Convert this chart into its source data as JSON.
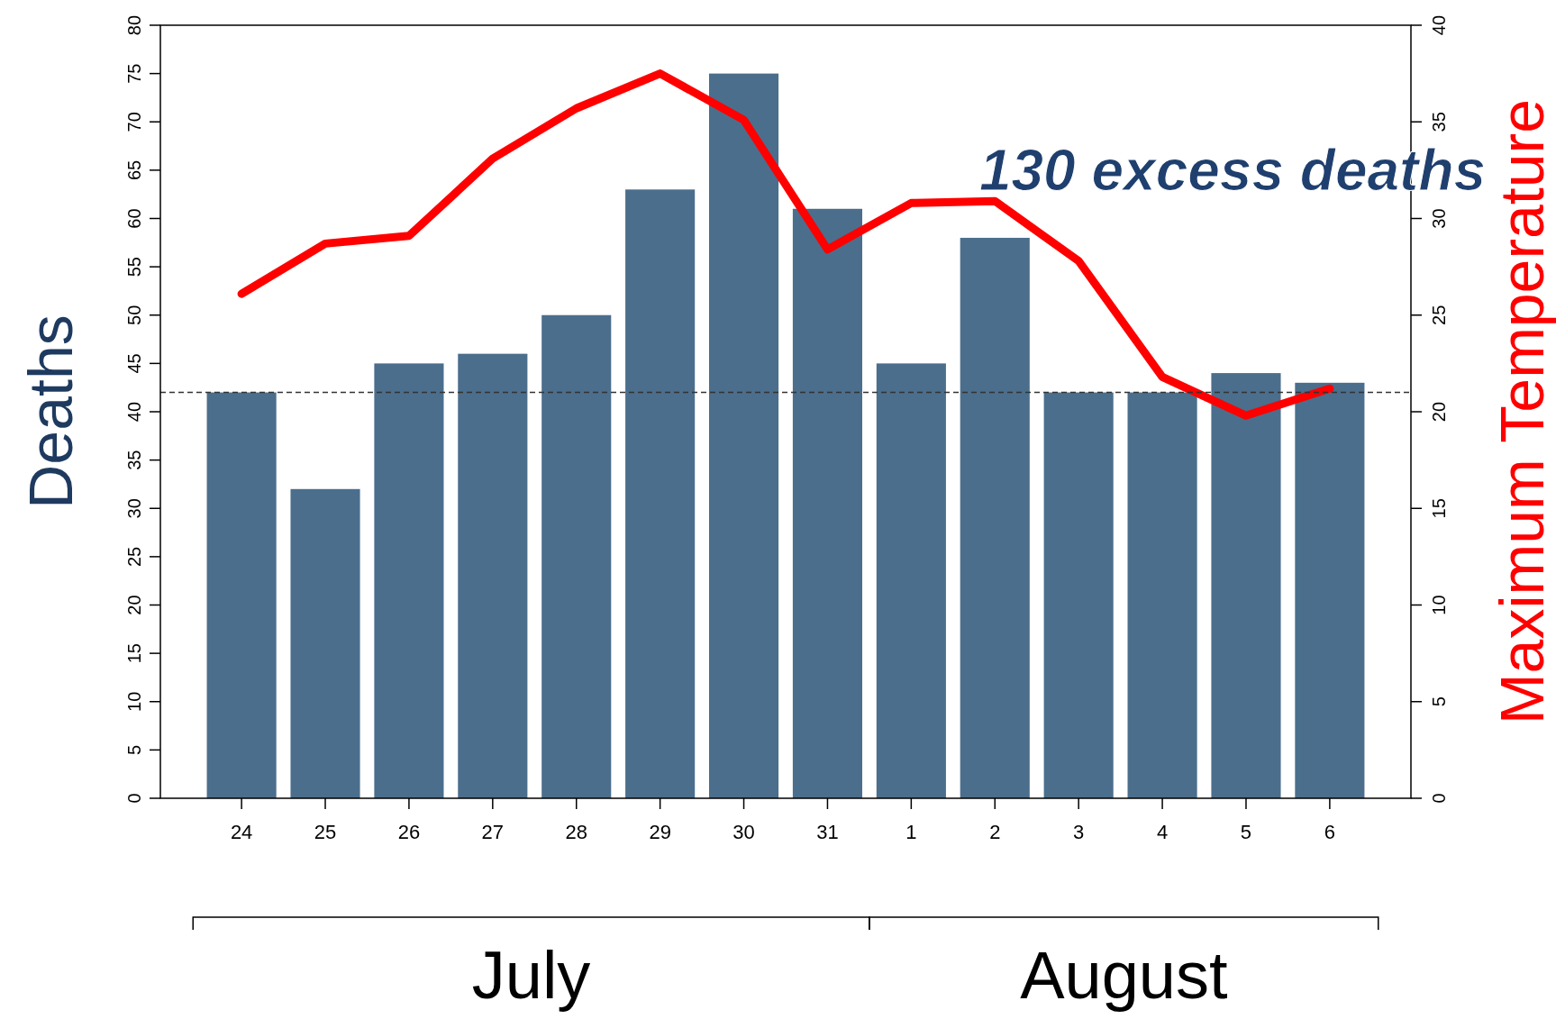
{
  "chart_data": {
    "type": "bar",
    "ylabel": "Deaths",
    "y2label": "Maximum Temperature",
    "categories": [
      "24",
      "25",
      "26",
      "27",
      "28",
      "29",
      "30",
      "31",
      "1",
      "2",
      "3",
      "4",
      "5",
      "6"
    ],
    "series": [
      {
        "color": "#4b6e8c",
        "values": [
          42,
          32,
          45,
          46,
          50,
          63,
          75,
          61,
          45,
          58,
          42,
          42,
          44,
          43
        ]
      },
      {
        "type": "line",
        "axis": "y2",
        "color": "#ff0000",
        "values": [
          26.1,
          28.7,
          29.1,
          33.1,
          35.7,
          37.5,
          35.1,
          28.4,
          30.8,
          30.9,
          27.8,
          21.8,
          19.8,
          21.2
        ]
      }
    ],
    "ylim": [
      0,
      80
    ],
    "yticks": [
      0,
      5,
      10,
      15,
      20,
      25,
      30,
      35,
      40,
      45,
      50,
      55,
      60,
      65,
      70,
      75,
      80
    ],
    "y2lim": [
      0,
      40
    ],
    "y2ticks": [
      0,
      5,
      10,
      15,
      20,
      25,
      30,
      35,
      40
    ],
    "ref_lines": [
      {
        "axis": "y",
        "value": 42,
        "color": "#333333",
        "line_style": "dashed"
      }
    ],
    "annotations": [
      "130 excess deaths",
      "July",
      "August"
    ],
    "grid": false,
    "marker": "none",
    "line_style": "solid"
  }
}
